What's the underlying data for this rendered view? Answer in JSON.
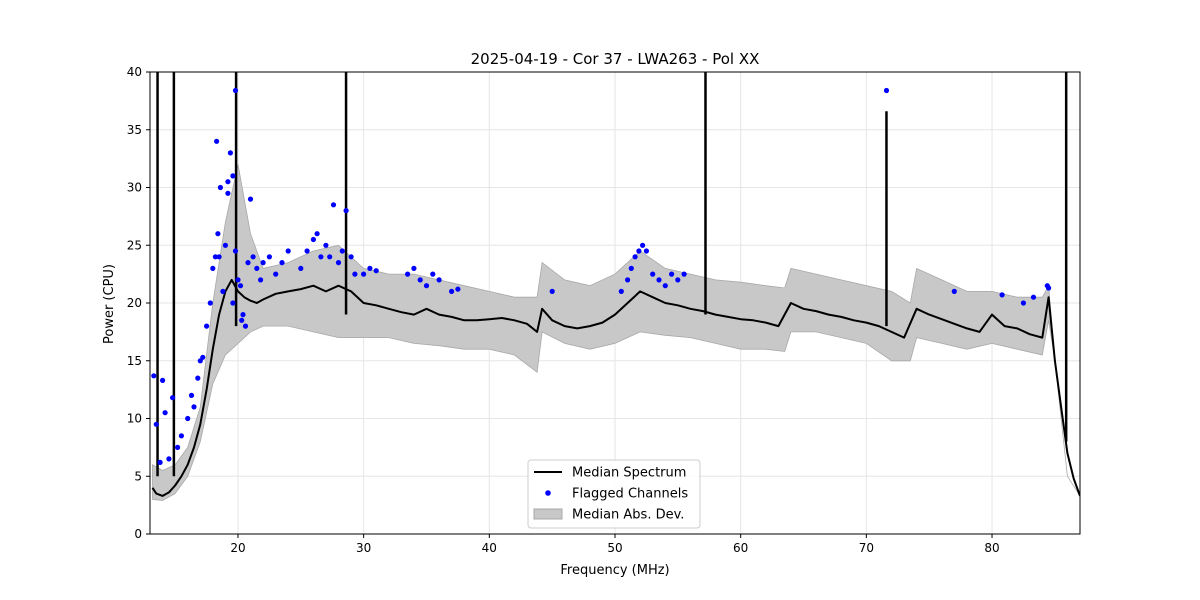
{
  "chart_data": {
    "type": "line",
    "title": "2025-04-19 - Cor 37 - LWA263 - Pol XX",
    "xlabel": "Frequency (MHz)",
    "ylabel": "Power (CPU)",
    "xlim": [
      13,
      87
    ],
    "ylim": [
      0,
      40
    ],
    "xticks": [
      20,
      30,
      40,
      50,
      60,
      70,
      80
    ],
    "yticks": [
      0,
      5,
      10,
      15,
      20,
      25,
      30,
      35,
      40
    ],
    "grid": true,
    "legend_position": "lower-center",
    "legend": [
      {
        "label": "Median Spectrum",
        "kind": "line",
        "color": "#000000"
      },
      {
        "label": "Flagged Channels",
        "kind": "marker",
        "color": "#0000ff"
      },
      {
        "label": "Median Abs. Dev.",
        "kind": "band",
        "color": "#c8c8c8"
      }
    ],
    "series": [
      {
        "name": "Median Spectrum",
        "color": "#000000",
        "x": [
          13.2,
          13.5,
          14.0,
          14.5,
          15.0,
          15.5,
          16.0,
          16.5,
          17.0,
          17.5,
          18.0,
          18.5,
          19.0,
          19.5,
          20.0,
          20.5,
          21.0,
          21.5,
          22.0,
          23.0,
          24.0,
          25.0,
          26.0,
          27.0,
          28.0,
          29.0,
          30.0,
          31.0,
          32.0,
          33.0,
          34.0,
          35.0,
          36.0,
          37.0,
          38.0,
          39.0,
          40.0,
          41.0,
          42.0,
          43.0,
          43.8,
          44.2,
          45.0,
          46.0,
          47.0,
          48.0,
          49.0,
          50.0,
          51.0,
          52.0,
          53.0,
          54.0,
          55.0,
          56.0,
          57.0,
          58.0,
          59.0,
          60.0,
          61.0,
          62.0,
          63.0,
          64.0,
          65.0,
          66.0,
          67.0,
          68.0,
          69.0,
          70.0,
          71.0,
          72.0,
          73.0,
          74.0,
          75.0,
          76.0,
          77.0,
          78.0,
          79.0,
          80.0,
          81.0,
          82.0,
          83.0,
          84.0,
          84.5,
          85.0,
          85.5,
          86.0,
          86.5,
          87.0
        ],
        "y": [
          4.0,
          3.5,
          3.3,
          3.6,
          4.2,
          5.0,
          6.0,
          7.5,
          9.5,
          12.5,
          16.0,
          19.0,
          21.0,
          22.0,
          21.0,
          20.5,
          20.2,
          20.0,
          20.3,
          20.8,
          21.0,
          21.2,
          21.5,
          21.0,
          21.5,
          21.0,
          20.0,
          19.8,
          19.5,
          19.2,
          19.0,
          19.5,
          19.0,
          18.8,
          18.5,
          18.5,
          18.6,
          18.7,
          18.5,
          18.2,
          17.5,
          19.5,
          18.5,
          18.0,
          17.8,
          18.0,
          18.3,
          19.0,
          20.0,
          21.0,
          20.5,
          20.0,
          19.8,
          19.5,
          19.3,
          19.0,
          18.8,
          18.6,
          18.5,
          18.3,
          18.0,
          20.0,
          19.5,
          19.3,
          19.0,
          18.8,
          18.5,
          18.3,
          18.0,
          17.5,
          17.0,
          19.5,
          19.0,
          18.6,
          18.2,
          17.8,
          17.5,
          19.0,
          18.0,
          17.8,
          17.3,
          17.0,
          20.5,
          15.0,
          11.0,
          7.0,
          4.8,
          3.3
        ]
      },
      {
        "name": "Median Abs. Dev.",
        "color": "#c8c8c8",
        "x": [
          13.2,
          14.0,
          15.0,
          16.0,
          17.0,
          18.0,
          19.0,
          20.0,
          21.0,
          22.0,
          24.0,
          26.0,
          28.0,
          30.0,
          32.0,
          34.0,
          36.0,
          38.0,
          40.0,
          42.0,
          43.8,
          44.2,
          46.0,
          48.0,
          50.0,
          52.0,
          54.0,
          56.0,
          58.0,
          60.0,
          62.0,
          63.5,
          64.0,
          66.0,
          68.0,
          70.0,
          72.0,
          73.5,
          74.0,
          76.0,
          78.0,
          80.0,
          82.0,
          84.0,
          84.5,
          85.0,
          86.0,
          87.0
        ],
        "lower": [
          3.0,
          2.9,
          3.5,
          5.0,
          8.0,
          13.0,
          15.5,
          16.5,
          17.5,
          18.0,
          18.0,
          17.5,
          17.0,
          17.0,
          17.0,
          16.5,
          16.3,
          16.0,
          16.0,
          15.5,
          14.0,
          17.5,
          16.5,
          16.0,
          16.5,
          17.5,
          17.2,
          17.0,
          16.5,
          16.0,
          16.0,
          15.8,
          17.5,
          17.5,
          17.0,
          16.5,
          15.0,
          15.0,
          17.0,
          16.5,
          16.0,
          16.5,
          16.0,
          15.5,
          18.5,
          15.0,
          5.0,
          3.3
        ],
        "upper": [
          6.0,
          5.5,
          6.0,
          7.5,
          11.0,
          20.0,
          27.0,
          32.0,
          26.0,
          23.0,
          23.5,
          24.5,
          25.0,
          23.0,
          22.5,
          22.5,
          22.0,
          21.5,
          21.0,
          20.5,
          20.5,
          23.5,
          22.0,
          21.5,
          22.5,
          24.5,
          23.0,
          22.5,
          22.0,
          21.8,
          21.5,
          21.3,
          23.0,
          22.5,
          22.0,
          21.5,
          21.0,
          20.0,
          23.0,
          22.0,
          21.0,
          21.0,
          20.5,
          20.5,
          21.5,
          15.0,
          5.0,
          3.3
        ]
      },
      {
        "name": "Flagged Channels",
        "color": "#0000ff",
        "x": [
          13.3,
          13.5,
          13.8,
          14.0,
          14.2,
          14.5,
          14.8,
          15.2,
          15.5,
          16.0,
          16.3,
          16.5,
          16.8,
          17.0,
          17.2,
          17.5,
          17.8,
          18.0,
          18.2,
          18.4,
          18.6,
          18.8,
          19.0,
          19.2,
          19.4,
          19.6,
          19.8,
          20.0,
          20.2,
          20.4,
          20.6,
          20.8,
          21.0,
          21.2,
          21.5,
          21.8,
          22.0,
          22.5,
          23.0,
          23.5,
          24.0,
          25.0,
          25.5,
          26.0,
          26.3,
          26.6,
          27.0,
          27.3,
          27.6,
          28.0,
          28.3,
          28.6,
          29.0,
          29.3,
          30.0,
          30.5,
          31.0,
          33.5,
          34.0,
          34.5,
          35.0,
          35.5,
          36.0,
          37.0,
          37.5,
          45.0,
          50.5,
          51.0,
          51.3,
          51.6,
          51.9,
          52.2,
          52.5,
          53.0,
          53.5,
          54.0,
          54.5,
          55.0,
          55.5,
          77.0,
          80.8,
          82.5,
          83.3,
          84.4,
          84.5,
          71.6,
          19.8,
          18.3,
          19.2,
          18.5,
          19.6,
          20.3
        ],
        "y": [
          13.7,
          9.5,
          6.2,
          13.3,
          10.5,
          6.5,
          11.8,
          7.5,
          8.5,
          10.0,
          12.0,
          11.0,
          13.5,
          15.0,
          15.3,
          18.0,
          20.0,
          23.0,
          24.0,
          26.0,
          30.0,
          21.0,
          25.0,
          29.5,
          33.0,
          31.0,
          24.5,
          22.0,
          21.5,
          19.0,
          18.0,
          23.5,
          29.0,
          24.0,
          23.0,
          22.0,
          23.5,
          24.0,
          22.5,
          23.5,
          24.5,
          23.0,
          24.5,
          25.5,
          26.0,
          24.0,
          25.0,
          24.0,
          28.5,
          23.5,
          24.5,
          28.0,
          24.0,
          22.5,
          22.5,
          23.0,
          22.8,
          22.5,
          23.0,
          22.0,
          21.5,
          22.5,
          22.0,
          21.0,
          21.2,
          21.0,
          21.0,
          22.0,
          23.0,
          24.0,
          24.5,
          25.0,
          24.5,
          22.5,
          22.0,
          21.5,
          22.5,
          22.0,
          22.5,
          21.0,
          20.7,
          20.0,
          20.5,
          21.5,
          21.3,
          38.4,
          38.4,
          34.0,
          30.5,
          24.0,
          20.0,
          18.5
        ]
      }
    ],
    "spikes": [
      {
        "x": 13.6,
        "from": 5.0,
        "to": 40
      },
      {
        "x": 14.9,
        "from": 5.0,
        "to": 40
      },
      {
        "x": 19.85,
        "from": 18.0,
        "to": 40
      },
      {
        "x": 28.6,
        "from": 19.0,
        "to": 40
      },
      {
        "x": 57.2,
        "from": 19.0,
        "to": 40
      },
      {
        "x": 71.6,
        "from": 18.0,
        "to": 36.6
      },
      {
        "x": 85.9,
        "from": 8.0,
        "to": 40
      }
    ]
  }
}
